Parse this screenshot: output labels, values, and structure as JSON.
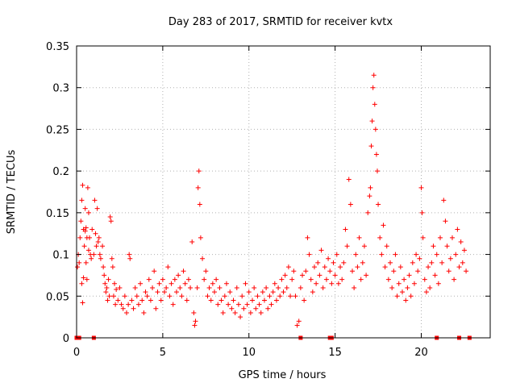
{
  "chart_data": {
    "type": "scatter",
    "title": "Day 283 of 2017, SRMTID for receiver kvtx",
    "xlabel": "GPS time / hours",
    "ylabel": "SRMTID / TECUs",
    "xlim": [
      0,
      24
    ],
    "ylim": [
      0,
      0.35
    ],
    "xticks": [
      0,
      5,
      10,
      15,
      20
    ],
    "yticks": [
      0,
      0.05,
      0.1,
      0.15,
      0.2,
      0.25,
      0.3,
      0.35
    ],
    "grid": true,
    "marker": "+",
    "series": [
      {
        "name": "SRMTID",
        "color": "#ff0000",
        "points": [
          [
            0.05,
            0.085
          ],
          [
            0.1,
            0.1
          ],
          [
            0.15,
            0.09
          ],
          [
            0.2,
            0.12
          ],
          [
            0.25,
            0.14
          ],
          [
            0.3,
            0.165
          ],
          [
            0.35,
            0.183
          ],
          [
            0.4,
            0.13
          ],
          [
            0.45,
            0.11
          ],
          [
            0.5,
            0.155
          ],
          [
            0.3,
            0.065
          ],
          [
            0.35,
            0.042
          ],
          [
            0.4,
            0.072
          ],
          [
            0.5,
            0.128
          ],
          [
            0.55,
            0.132
          ],
          [
            0.6,
            0.12
          ],
          [
            0.65,
            0.18
          ],
          [
            0.7,
            0.15
          ],
          [
            0.75,
            0.12
          ],
          [
            0.8,
            0.1
          ],
          [
            0.55,
            0.09
          ],
          [
            0.6,
            0.07
          ],
          [
            0.7,
            0.105
          ],
          [
            0.85,
            0.095
          ],
          [
            0.9,
            0.13
          ],
          [
            1.0,
            0.1
          ],
          [
            1.05,
            0.165
          ],
          [
            1.1,
            0.125
          ],
          [
            1.15,
            0.11
          ],
          [
            1.2,
            0.155
          ],
          [
            1.25,
            0.115
          ],
          [
            1.3,
            0.12
          ],
          [
            1.35,
            0.1
          ],
          [
            1.4,
            0.095
          ],
          [
            1.5,
            0.11
          ],
          [
            1.55,
            0.085
          ],
          [
            1.6,
            0.075
          ],
          [
            1.65,
            0.065
          ],
          [
            1.7,
            0.055
          ],
          [
            1.75,
            0.06
          ],
          [
            1.8,
            0.045
          ],
          [
            1.85,
            0.07
          ],
          [
            1.9,
            0.05
          ],
          [
            1.95,
            0.145
          ],
          [
            2.0,
            0.14
          ],
          [
            2.05,
            0.095
          ],
          [
            2.1,
            0.085
          ],
          [
            2.15,
            0.05
          ],
          [
            2.2,
            0.065
          ],
          [
            2.25,
            0.04
          ],
          [
            2.3,
            0.058
          ],
          [
            2.4,
            0.045
          ],
          [
            2.5,
            0.06
          ],
          [
            2.6,
            0.04
          ],
          [
            2.7,
            0.035
          ],
          [
            2.8,
            0.05
          ],
          [
            2.9,
            0.03
          ],
          [
            3.0,
            0.04
          ],
          [
            3.05,
            0.1
          ],
          [
            3.1,
            0.095
          ],
          [
            3.2,
            0.045
          ],
          [
            3.3,
            0.035
          ],
          [
            3.4,
            0.06
          ],
          [
            3.5,
            0.05
          ],
          [
            3.6,
            0.04
          ],
          [
            3.7,
            0.065
          ],
          [
            3.8,
            0.045
          ],
          [
            3.9,
            0.03
          ],
          [
            4.0,
            0.055
          ],
          [
            4.1,
            0.05
          ],
          [
            4.2,
            0.07
          ],
          [
            4.3,
            0.045
          ],
          [
            4.4,
            0.06
          ],
          [
            4.5,
            0.08
          ],
          [
            4.6,
            0.035
          ],
          [
            4.7,
            0.055
          ],
          [
            4.8,
            0.065
          ],
          [
            4.9,
            0.045
          ],
          [
            5.0,
            0.07
          ],
          [
            5.1,
            0.055
          ],
          [
            5.2,
            0.06
          ],
          [
            5.3,
            0.085
          ],
          [
            5.4,
            0.05
          ],
          [
            5.5,
            0.065
          ],
          [
            5.6,
            0.04
          ],
          [
            5.7,
            0.07
          ],
          [
            5.8,
            0.055
          ],
          [
            5.9,
            0.075
          ],
          [
            6.0,
            0.06
          ],
          [
            6.1,
            0.05
          ],
          [
            6.2,
            0.08
          ],
          [
            6.3,
            0.065
          ],
          [
            6.4,
            0.045
          ],
          [
            6.5,
            0.07
          ],
          [
            6.6,
            0.06
          ],
          [
            6.7,
            0.115
          ],
          [
            6.8,
            0.03
          ],
          [
            6.85,
            0.015
          ],
          [
            6.9,
            0.02
          ],
          [
            7.0,
            0.06
          ],
          [
            7.05,
            0.18
          ],
          [
            7.1,
            0.2
          ],
          [
            7.15,
            0.16
          ],
          [
            7.2,
            0.12
          ],
          [
            7.3,
            0.095
          ],
          [
            7.4,
            0.07
          ],
          [
            7.5,
            0.08
          ],
          [
            7.6,
            0.05
          ],
          [
            7.7,
            0.06
          ],
          [
            7.8,
            0.045
          ],
          [
            7.9,
            0.065
          ],
          [
            8.0,
            0.055
          ],
          [
            8.1,
            0.07
          ],
          [
            8.2,
            0.04
          ],
          [
            8.3,
            0.06
          ],
          [
            8.4,
            0.045
          ],
          [
            8.5,
            0.03
          ],
          [
            8.6,
            0.05
          ],
          [
            8.7,
            0.065
          ],
          [
            8.8,
            0.04
          ],
          [
            8.9,
            0.055
          ],
          [
            9.0,
            0.035
          ],
          [
            9.1,
            0.045
          ],
          [
            9.2,
            0.03
          ],
          [
            9.3,
            0.06
          ],
          [
            9.4,
            0.04
          ],
          [
            9.5,
            0.025
          ],
          [
            9.6,
            0.05
          ],
          [
            9.7,
            0.035
          ],
          [
            9.8,
            0.065
          ],
          [
            9.9,
            0.04
          ],
          [
            10.0,
            0.055
          ],
          [
            10.1,
            0.03
          ],
          [
            10.2,
            0.045
          ],
          [
            10.3,
            0.06
          ],
          [
            10.4,
            0.035
          ],
          [
            10.5,
            0.05
          ],
          [
            10.6,
            0.04
          ],
          [
            10.7,
            0.03
          ],
          [
            10.8,
            0.055
          ],
          [
            10.9,
            0.045
          ],
          [
            11.0,
            0.06
          ],
          [
            11.1,
            0.035
          ],
          [
            11.2,
            0.05
          ],
          [
            11.3,
            0.04
          ],
          [
            11.4,
            0.055
          ],
          [
            11.5,
            0.065
          ],
          [
            11.6,
            0.045
          ],
          [
            11.7,
            0.06
          ],
          [
            11.8,
            0.05
          ],
          [
            11.9,
            0.07
          ],
          [
            12.0,
            0.055
          ],
          [
            12.1,
            0.075
          ],
          [
            12.2,
            0.06
          ],
          [
            12.3,
            0.085
          ],
          [
            12.4,
            0.05
          ],
          [
            12.5,
            0.07
          ],
          [
            12.6,
            0.08
          ],
          [
            12.7,
            0.05
          ],
          [
            12.8,
            0.015
          ],
          [
            12.9,
            0.02
          ],
          [
            13.0,
            0.06
          ],
          [
            13.1,
            0.075
          ],
          [
            13.2,
            0.045
          ],
          [
            13.3,
            0.08
          ],
          [
            13.4,
            0.12
          ],
          [
            13.5,
            0.1
          ],
          [
            13.6,
            0.07
          ],
          [
            13.7,
            0.055
          ],
          [
            13.8,
            0.085
          ],
          [
            13.9,
            0.065
          ],
          [
            14.0,
            0.09
          ],
          [
            14.1,
            0.075
          ],
          [
            14.2,
            0.105
          ],
          [
            14.3,
            0.06
          ],
          [
            14.4,
            0.085
          ],
          [
            14.5,
            0.07
          ],
          [
            14.6,
            0.095
          ],
          [
            14.7,
            0.08
          ],
          [
            14.8,
            0.065
          ],
          [
            14.9,
            0.09
          ],
          [
            15.0,
            0.075
          ],
          [
            15.1,
            0.1
          ],
          [
            15.2,
            0.065
          ],
          [
            15.3,
            0.085
          ],
          [
            15.4,
            0.07
          ],
          [
            15.5,
            0.09
          ],
          [
            15.6,
            0.13
          ],
          [
            15.7,
            0.11
          ],
          [
            15.8,
            0.19
          ],
          [
            15.9,
            0.16
          ],
          [
            16.0,
            0.08
          ],
          [
            16.1,
            0.06
          ],
          [
            16.2,
            0.1
          ],
          [
            16.3,
            0.085
          ],
          [
            16.4,
            0.12
          ],
          [
            16.5,
            0.07
          ],
          [
            16.6,
            0.09
          ],
          [
            16.7,
            0.11
          ],
          [
            16.8,
            0.075
          ],
          [
            16.9,
            0.15
          ],
          [
            17.0,
            0.17
          ],
          [
            17.05,
            0.18
          ],
          [
            17.1,
            0.23
          ],
          [
            17.15,
            0.26
          ],
          [
            17.2,
            0.3
          ],
          [
            17.25,
            0.315
          ],
          [
            17.3,
            0.28
          ],
          [
            17.35,
            0.25
          ],
          [
            17.4,
            0.22
          ],
          [
            17.45,
            0.2
          ],
          [
            17.5,
            0.16
          ],
          [
            17.6,
            0.12
          ],
          [
            17.7,
            0.1
          ],
          [
            17.8,
            0.135
          ],
          [
            17.9,
            0.085
          ],
          [
            18.0,
            0.11
          ],
          [
            18.1,
            0.07
          ],
          [
            18.2,
            0.09
          ],
          [
            18.3,
            0.06
          ],
          [
            18.4,
            0.08
          ],
          [
            18.5,
            0.1
          ],
          [
            18.6,
            0.05
          ],
          [
            18.7,
            0.065
          ],
          [
            18.8,
            0.085
          ],
          [
            18.9,
            0.055
          ],
          [
            19.0,
            0.07
          ],
          [
            19.1,
            0.045
          ],
          [
            19.2,
            0.06
          ],
          [
            19.3,
            0.075
          ],
          [
            19.4,
            0.05
          ],
          [
            19.5,
            0.09
          ],
          [
            19.6,
            0.065
          ],
          [
            19.7,
            0.1
          ],
          [
            19.8,
            0.08
          ],
          [
            19.9,
            0.095
          ],
          [
            20.0,
            0.18
          ],
          [
            20.05,
            0.15
          ],
          [
            20.1,
            0.12
          ],
          [
            20.2,
            0.07
          ],
          [
            20.3,
            0.055
          ],
          [
            20.4,
            0.085
          ],
          [
            20.5,
            0.06
          ],
          [
            20.6,
            0.09
          ],
          [
            20.7,
            0.11
          ],
          [
            20.8,
            0.075
          ],
          [
            20.9,
            0.1
          ],
          [
            21.0,
            0.065
          ],
          [
            21.1,
            0.12
          ],
          [
            21.2,
            0.09
          ],
          [
            21.3,
            0.165
          ],
          [
            21.4,
            0.14
          ],
          [
            21.5,
            0.11
          ],
          [
            21.6,
            0.08
          ],
          [
            21.7,
            0.095
          ],
          [
            21.8,
            0.12
          ],
          [
            21.9,
            0.07
          ],
          [
            22.0,
            0.1
          ],
          [
            22.1,
            0.13
          ],
          [
            22.2,
            0.085
          ],
          [
            22.3,
            0.115
          ],
          [
            22.4,
            0.09
          ],
          [
            22.5,
            0.105
          ],
          [
            22.6,
            0.08
          ]
        ]
      }
    ],
    "baseline_markers_x": [
      0.0,
      0.1,
      0.15,
      1.0,
      13.0,
      14.7,
      14.8,
      20.9,
      22.2,
      22.8
    ]
  }
}
